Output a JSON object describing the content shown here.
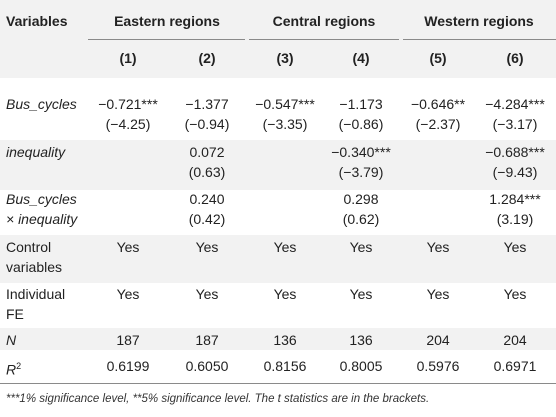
{
  "header": {
    "variables": "Variables",
    "groups": [
      "Eastern regions",
      "Central regions",
      "Western regions"
    ],
    "columns": [
      "(1)",
      "(2)",
      "(3)",
      "(4)",
      "(5)",
      "(6)"
    ]
  },
  "rows": {
    "bus_cycles": {
      "label": "Bus_cycles",
      "coef": [
        "−0.721***",
        "−1.377",
        "−0.547***",
        "−1.173",
        "−0.646**",
        "−4.284***"
      ],
      "t": [
        "(−4.25)",
        "(−0.94)",
        "(−3.35)",
        "(−0.86)",
        "(−2.37)",
        "(−3.17)"
      ]
    },
    "inequality": {
      "label": "inequality",
      "coef": [
        "",
        "0.072",
        "",
        "−0.340***",
        "",
        "−0.688***"
      ],
      "t": [
        "",
        "(0.63)",
        "",
        "(−3.79)",
        "",
        "(−9.43)"
      ]
    },
    "interaction": {
      "label1": "Bus_cycles",
      "label2": "× inequality",
      "coef": [
        "",
        "0.240",
        "",
        "0.298",
        "",
        "1.284***"
      ],
      "t": [
        "",
        "(0.42)",
        "",
        "(0.62)",
        "",
        "(3.19)"
      ]
    },
    "controls": {
      "label1": "Control",
      "label2": "variables",
      "values": [
        "Yes",
        "Yes",
        "Yes",
        "Yes",
        "Yes",
        "Yes"
      ]
    },
    "fe": {
      "label1": "Individual",
      "label2": "FE",
      "values": [
        "Yes",
        "Yes",
        "Yes",
        "Yes",
        "Yes",
        "Yes"
      ]
    },
    "n": {
      "label": "N",
      "values": [
        "187",
        "187",
        "136",
        "136",
        "204",
        "204"
      ]
    },
    "r2": {
      "label": "R",
      "sup": "2",
      "values": [
        "0.6199",
        "0.6050",
        "0.8156",
        "0.8005",
        "0.5976",
        "0.6971"
      ]
    }
  },
  "note": "***1% significance level, **5% significance level. The t statistics are in the brackets."
}
